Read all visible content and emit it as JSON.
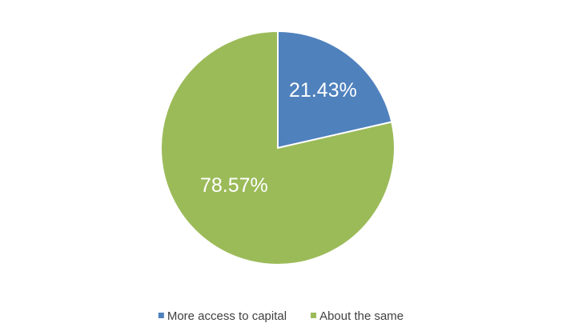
{
  "chart_data": {
    "type": "pie",
    "categories": [
      "More access to capital",
      "About the same"
    ],
    "values": [
      21.43,
      78.57
    ],
    "value_labels": [
      "21.43%",
      "78.57%"
    ],
    "colors": [
      "#4f81bd",
      "#9bbb59"
    ],
    "legend": "bottom"
  }
}
